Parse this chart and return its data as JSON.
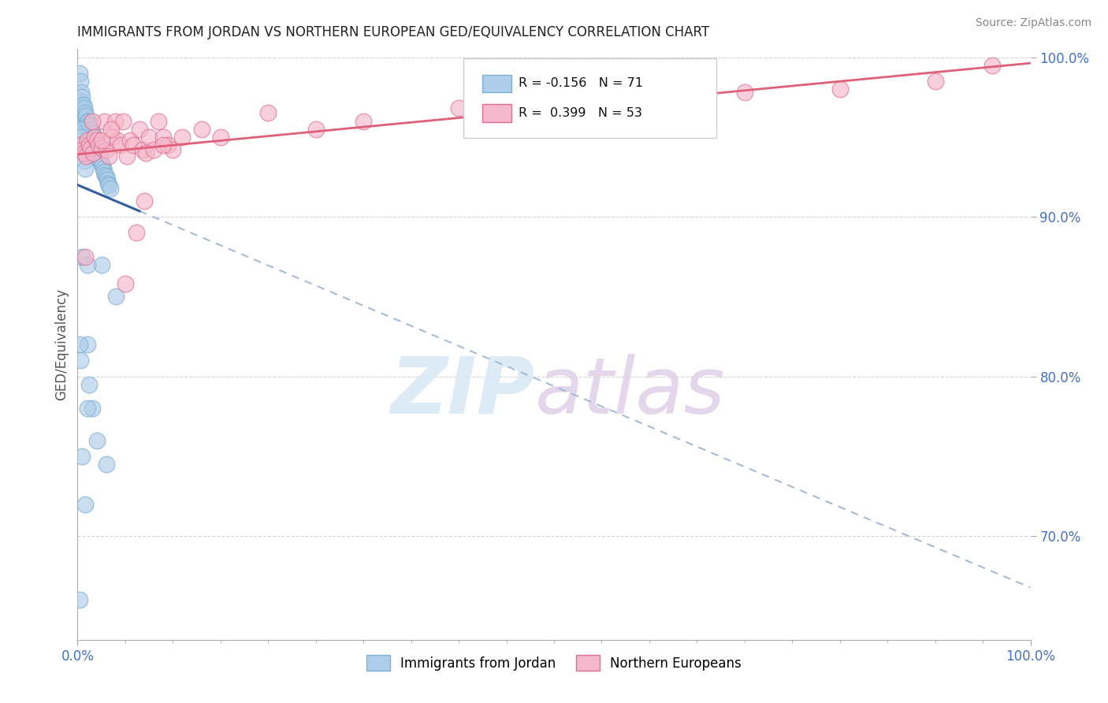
{
  "title": "IMMIGRANTS FROM JORDAN VS NORTHERN EUROPEAN GED/EQUIVALENCY CORRELATION CHART",
  "source": "Source: ZipAtlas.com",
  "ylabel": "GED/Equivalency",
  "xlim": [
    0.0,
    1.0
  ],
  "ylim": [
    0.635,
    1.005
  ],
  "x_ticks": [
    0.0,
    1.0
  ],
  "x_tick_labels": [
    "0.0%",
    "100.0%"
  ],
  "y_ticks": [
    0.7,
    0.8,
    0.9,
    1.0
  ],
  "y_tick_labels": [
    "70.0%",
    "80.0%",
    "90.0%",
    "100.0%"
  ],
  "jordan_color": "#aecde8",
  "jordan_edge": "#7bafd4",
  "jordan_line_color": "#3060a0",
  "jordan_dash_color": "#a0b8d8",
  "northern_color": "#f5b8cc",
  "northern_edge": "#e07090",
  "northern_line_color": "#e0607a",
  "tick_color": "#4472c4",
  "grid_color": "#d0d0d0",
  "title_color": "#222222",
  "source_color": "#888888",
  "legend_box_color": "#f0f0f0",
  "watermark_zip_color": "#d8e8f5",
  "watermark_atlas_color": "#e0d0e8",
  "jordan_x": [
    0.002,
    0.003,
    0.004,
    0.004,
    0.005,
    0.005,
    0.006,
    0.006,
    0.007,
    0.007,
    0.008,
    0.008,
    0.009,
    0.009,
    0.01,
    0.01,
    0.011,
    0.011,
    0.012,
    0.012,
    0.013,
    0.013,
    0.014,
    0.014,
    0.015,
    0.015,
    0.016,
    0.016,
    0.017,
    0.017,
    0.018,
    0.018,
    0.019,
    0.019,
    0.02,
    0.02,
    0.021,
    0.022,
    0.023,
    0.024,
    0.025,
    0.026,
    0.027,
    0.028,
    0.029,
    0.03,
    0.031,
    0.032,
    0.033,
    0.034,
    0.003,
    0.004,
    0.005,
    0.006,
    0.007,
    0.008,
    0.01,
    0.012,
    0.015,
    0.002,
    0.003,
    0.005,
    0.008,
    0.01,
    0.02,
    0.03,
    0.002,
    0.025,
    0.04,
    0.01,
    0.005
  ],
  "jordan_y": [
    0.99,
    0.985,
    0.978,
    0.972,
    0.968,
    0.975,
    0.965,
    0.97,
    0.962,
    0.968,
    0.96,
    0.965,
    0.958,
    0.963,
    0.955,
    0.96,
    0.955,
    0.96,
    0.953,
    0.958,
    0.952,
    0.957,
    0.95,
    0.955,
    0.948,
    0.953,
    0.947,
    0.952,
    0.945,
    0.95,
    0.943,
    0.948,
    0.942,
    0.947,
    0.94,
    0.945,
    0.94,
    0.938,
    0.936,
    0.935,
    0.933,
    0.932,
    0.93,
    0.928,
    0.926,
    0.925,
    0.923,
    0.921,
    0.92,
    0.918,
    0.955,
    0.95,
    0.945,
    0.94,
    0.935,
    0.93,
    0.82,
    0.795,
    0.78,
    0.82,
    0.81,
    0.75,
    0.72,
    0.78,
    0.76,
    0.745,
    0.66,
    0.87,
    0.85,
    0.87,
    0.875
  ],
  "northern_x": [
    0.003,
    0.005,
    0.007,
    0.009,
    0.01,
    0.012,
    0.014,
    0.016,
    0.018,
    0.02,
    0.022,
    0.025,
    0.028,
    0.03,
    0.033,
    0.036,
    0.039,
    0.042,
    0.045,
    0.048,
    0.052,
    0.055,
    0.058,
    0.062,
    0.065,
    0.068,
    0.072,
    0.075,
    0.08,
    0.085,
    0.09,
    0.095,
    0.1,
    0.008,
    0.015,
    0.025,
    0.035,
    0.05,
    0.07,
    0.09,
    0.11,
    0.13,
    0.15,
    0.2,
    0.25,
    0.3,
    0.4,
    0.5,
    0.6,
    0.7,
    0.8,
    0.9,
    0.96
  ],
  "northern_y": [
    0.945,
    0.942,
    0.94,
    0.938,
    0.948,
    0.945,
    0.943,
    0.94,
    0.95,
    0.948,
    0.945,
    0.943,
    0.96,
    0.942,
    0.938,
    0.95,
    0.96,
    0.948,
    0.945,
    0.96,
    0.938,
    0.948,
    0.945,
    0.89,
    0.955,
    0.942,
    0.94,
    0.95,
    0.942,
    0.96,
    0.95,
    0.945,
    0.942,
    0.875,
    0.96,
    0.948,
    0.955,
    0.858,
    0.91,
    0.945,
    0.95,
    0.955,
    0.95,
    0.965,
    0.955,
    0.96,
    0.968,
    0.972,
    0.975,
    0.978,
    0.98,
    0.985,
    0.995
  ]
}
